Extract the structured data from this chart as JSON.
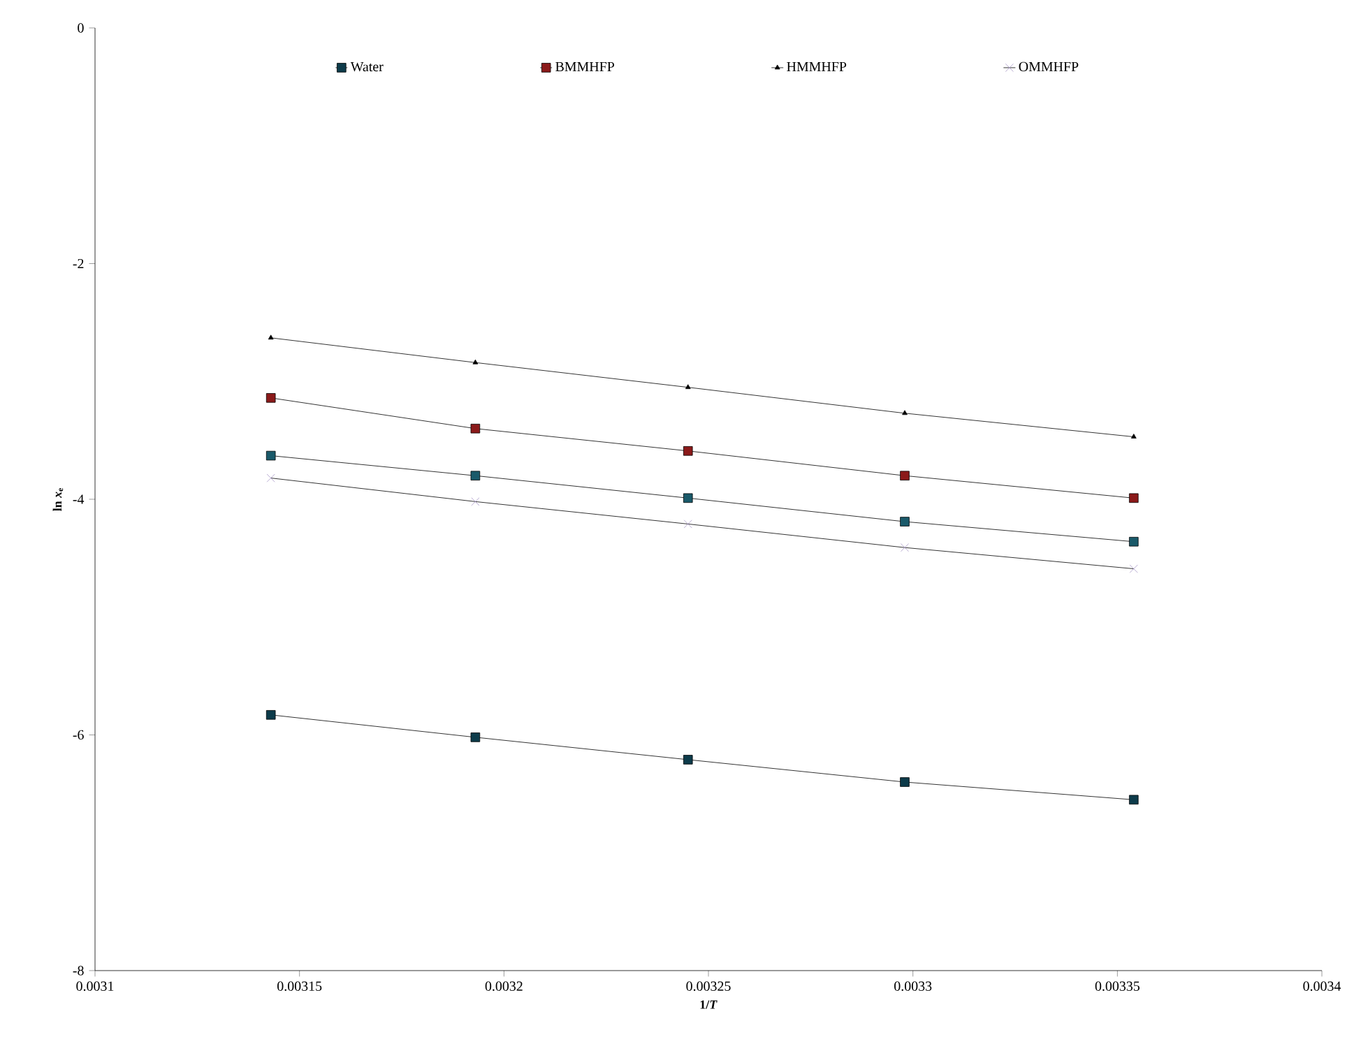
{
  "chart_data": {
    "type": "line",
    "xlabel": "1/*T*",
    "ylabel": "ln *x*$_{e}$",
    "xlim": [
      0.0031,
      0.0034
    ],
    "xticks": [
      0.0031,
      0.00315,
      0.0032,
      0.00325,
      0.0033,
      0.00335,
      0.0034
    ],
    "ylim": [
      -8,
      0
    ],
    "yticks": [
      -8,
      -6,
      -4,
      -2,
      0
    ],
    "legend": "top",
    "grid": false,
    "line_style": "solid",
    "x": [
      0.003143,
      0.003193,
      0.003245,
      0.003298,
      0.003354
    ],
    "series": [
      {
        "name": "Water",
        "color": "#0d3b4a",
        "marker": "square",
        "values": [
          -5.83,
          -6.02,
          -6.21,
          -6.4,
          -6.55
        ]
      },
      {
        "name": "BMMHFP",
        "color": "#8b1a1a",
        "marker": "square",
        "values": [
          -3.14,
          -3.4,
          -3.59,
          -3.8,
          -3.99
        ]
      },
      {
        "name": "HMMHFP",
        "color": "#000000",
        "marker": "triangle",
        "values": [
          -2.63,
          -2.84,
          -3.05,
          -3.27,
          -3.47
        ]
      },
      {
        "name": "OMMHFP",
        "color": "#a898c8",
        "marker": "cross",
        "values": [
          -3.82,
          -4.02,
          -4.21,
          -4.41,
          -4.59
        ]
      },
      {
        "color": "#1a5a6a",
        "marker": "square",
        "values": [
          -3.63,
          -3.8,
          -3.99,
          -4.19,
          -4.36
        ]
      }
    ]
  }
}
